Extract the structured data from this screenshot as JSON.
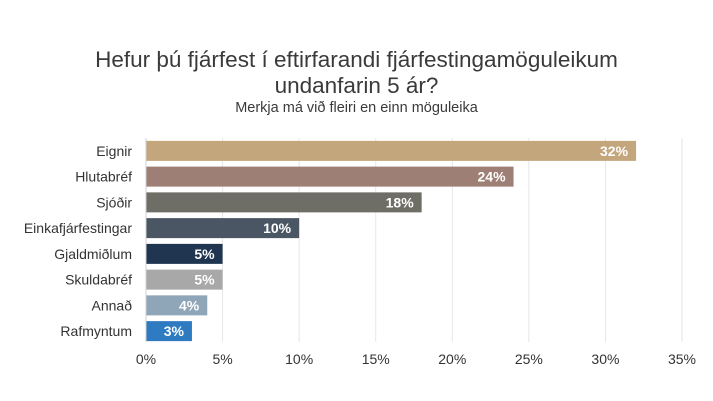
{
  "chart_data": {
    "type": "bar",
    "orientation": "horizontal",
    "title": "Hefur þú fjárfest í eftirfarandi fjárfestingamöguleikum undanfarin 5 ár?",
    "title_lines": [
      "Hefur þú fjárfest í eftirfarandi fjárfestingamöguleikum",
      "undanfarin 5 ár?"
    ],
    "subtitle": "Merkja má við fleiri en einn möguleika",
    "categories": [
      "Eignir",
      "Hlutabréf",
      "Sjóðir",
      "Einkafjárfestingar",
      "Gjaldmiðlum",
      "Skuldabréf",
      "Annað",
      "Rafmyntum"
    ],
    "values": [
      32,
      24,
      18,
      10,
      5,
      5,
      4,
      3
    ],
    "value_labels": [
      "32%",
      "24%",
      "18%",
      "10%",
      "5%",
      "5%",
      "4%",
      "3%"
    ],
    "colors": [
      "#c3a67c",
      "#9e7f76",
      "#6e6e66",
      "#4a5664",
      "#1f3550",
      "#a8a8a8",
      "#8fa5b8",
      "#2f7bc2"
    ],
    "xlim": [
      0,
      35
    ],
    "xticks": [
      "0%",
      "5%",
      "10%",
      "15%",
      "20%",
      "25%",
      "30%",
      "35%"
    ],
    "grid": "vertical"
  }
}
